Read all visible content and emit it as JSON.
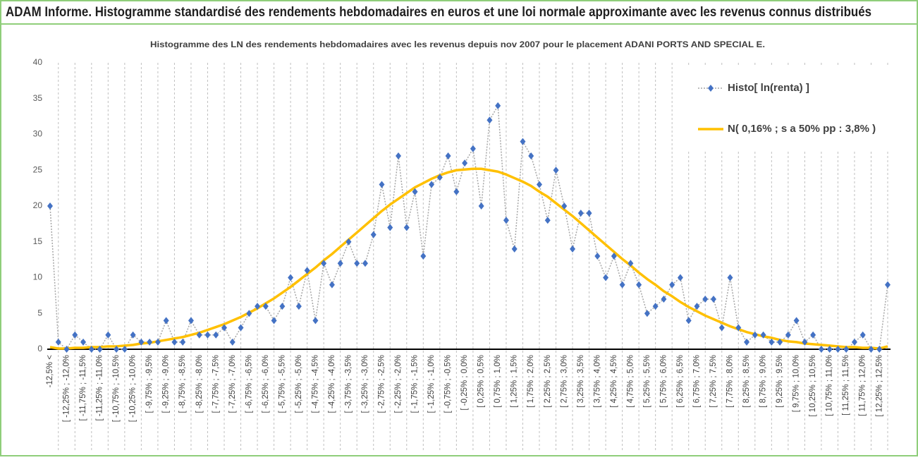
{
  "chart_data": {
    "type": "line",
    "title": "ADAM Informe. Histogramme standardisé des rendements hebdomadaires en euros et une loi normale approximante avec les revenus connus distribués",
    "subtitle": "Histogramme des LN des rendements hebdomadaires avec les revenus depuis nov 2007 pour le placement ADANI PORTS AND SPECIAL E.",
    "categories": [
      "-12,5% <",
      null,
      "[ -12,25% ; -12,0%",
      null,
      "[ -11,75% ; -11,5%",
      null,
      "[ -11,25% ; -11,0%",
      null,
      "[ -10,75% ; -10,5%",
      null,
      "[ -10,25% ; -10,0%",
      null,
      "[ -9,75% ; -9,5%",
      null,
      "[ -9,25% ; -9,0%",
      null,
      "[ -8,75% ; -8,5%",
      null,
      "[ -8,25% ; -8,0%",
      null,
      "[ -7,75% ; -7,5%",
      null,
      "[ -7,25% ; -7,0%",
      null,
      "[ -6,75% ; -6,5%",
      null,
      "[ -6,25% ; -6,0%",
      null,
      "[ -5,75% ; -5,5%",
      null,
      "[ -5,25% ; -5,0%",
      null,
      "[ -4,75% ; -4,5%",
      null,
      "[ -4,25% ; -4,0%",
      null,
      "[ -3,75% ; -3,5%",
      null,
      "[ -3,25% ; -3,0%",
      null,
      "[ -2,75% ; -2,5%",
      null,
      "[ -2,25% ; -2,0%",
      null,
      "[ -1,75% ; -1,5%",
      null,
      "[ -1,25% ; -1,0%",
      null,
      "[ -0,75% ; -0,5%",
      null,
      "[ -0,25% ; 0,0%",
      null,
      "[ 0,25% ; 0,5%",
      null,
      "[ 0,75% ; 1,0%",
      null,
      "[ 1,25% ; 1,5%",
      null,
      "[ 1,75% ; 2,0%",
      null,
      "[ 2,25% ; 2,5%",
      null,
      "[ 2,75% ; 3,0%",
      null,
      "[ 3,25% ; 3,5%",
      null,
      "[ 3,75% ; 4,0%",
      null,
      "[ 4,25% ; 4,5%",
      null,
      "[ 4,75% ; 5,0%",
      null,
      "[ 5,25% ; 5,5%",
      null,
      "[ 5,75% ; 6,0%",
      null,
      "[ 6,25% ; 6,5%",
      null,
      "[ 6,75% ; 7,0%",
      null,
      "[ 7,25% ; 7,5%",
      null,
      "[ 7,75% ; 8,0%",
      null,
      "[ 8,25% ; 8,5%",
      null,
      "[ 8,75% ; 9,0%",
      null,
      "[ 9,25% ; 9,5%",
      null,
      "[ 9,75% ; 10,0%",
      null,
      "[ 10,25% ; 10,5%",
      null,
      "[ 10,75% ; 11,0%",
      null,
      "[ 11,25% ; 11,5%",
      null,
      "[ 11,75% ; 12,0%",
      null,
      "[ 12,25% ; 12,5%",
      null
    ],
    "series": [
      {
        "name": "Histo[ ln(renta) ]",
        "color": "#4472c4",
        "line_color": "#a6a6a6",
        "values": [
          20,
          1,
          0,
          2,
          1,
          0,
          0,
          2,
          0,
          0,
          2,
          1,
          1,
          1,
          4,
          1,
          1,
          4,
          2,
          2,
          2,
          3,
          1,
          3,
          5,
          6,
          6,
          4,
          6,
          10,
          6,
          11,
          4,
          12,
          9,
          12,
          15,
          12,
          12,
          16,
          23,
          17,
          27,
          17,
          22,
          13,
          23,
          24,
          27,
          22,
          26,
          28,
          20,
          32,
          34,
          18,
          14,
          29,
          27,
          23,
          18,
          25,
          20,
          14,
          19,
          19,
          13,
          10,
          13,
          9,
          12,
          9,
          5,
          6,
          7,
          9,
          10,
          4,
          6,
          7,
          7,
          3,
          10,
          3,
          1,
          2,
          2,
          1,
          1,
          2,
          4,
          1,
          2,
          0,
          0,
          0,
          0,
          1,
          2,
          0,
          0,
          9
        ]
      },
      {
        "name": "N( 0,16% ; s a 50% pp : 3,8% )",
        "color": "#ffc000",
        "values": [
          0.3,
          0.1,
          0.1,
          0.2,
          0.2,
          0.3,
          0.3,
          0.4,
          0.4,
          0.5,
          0.6,
          0.8,
          0.9,
          1.1,
          1.3,
          1.5,
          1.7,
          2.0,
          2.3,
          2.7,
          3.1,
          3.5,
          4.0,
          4.5,
          5.1,
          5.7,
          6.4,
          7.1,
          7.9,
          8.7,
          9.6,
          10.5,
          11.4,
          12.4,
          13.3,
          14.3,
          15.3,
          16.3,
          17.3,
          18.3,
          19.3,
          20.2,
          21.0,
          21.8,
          22.6,
          23.2,
          23.8,
          24.3,
          24.7,
          25.0,
          25.1,
          25.2,
          25.2,
          25.0,
          24.8,
          24.4,
          23.9,
          23.4,
          22.8,
          22.0,
          21.3,
          20.4,
          19.5,
          18.6,
          17.6,
          16.6,
          15.6,
          14.6,
          13.6,
          12.6,
          11.7,
          10.7,
          9.8,
          9.0,
          8.1,
          7.4,
          6.6,
          5.9,
          5.3,
          4.7,
          4.2,
          3.7,
          3.2,
          2.8,
          2.4,
          2.1,
          1.8,
          1.6,
          1.3,
          1.1,
          1.0,
          0.8,
          0.7,
          0.6,
          0.5,
          0.4,
          0.3,
          0.3,
          0.2,
          0.2,
          0.1,
          0.4
        ]
      }
    ],
    "ylim": [
      0,
      40
    ],
    "yticks": [
      0,
      5,
      10,
      15,
      20,
      25,
      30,
      35,
      40
    ],
    "xgrid": true,
    "legend": "upper right"
  }
}
